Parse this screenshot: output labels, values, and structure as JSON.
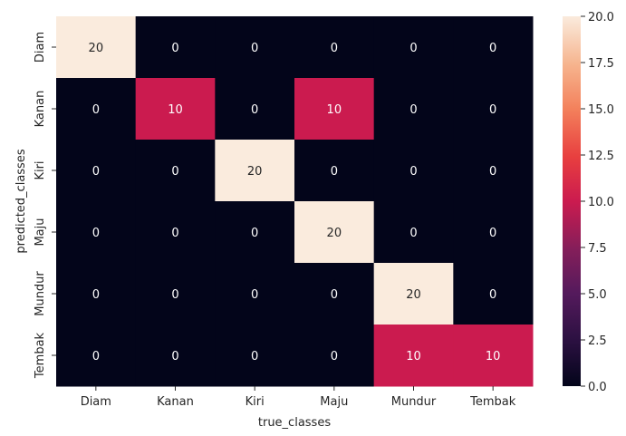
{
  "chart_data": {
    "type": "heatmap",
    "x_categories": [
      "Diam",
      "Kanan",
      "Kiri",
      "Maju",
      "Mundur",
      "Tembak"
    ],
    "y_categories": [
      "Diam",
      "Kanan",
      "Kiri",
      "Maju",
      "Mundur",
      "Tembak"
    ],
    "values": [
      [
        20,
        0,
        0,
        0,
        0,
        0
      ],
      [
        0,
        10,
        0,
        10,
        0,
        0
      ],
      [
        0,
        0,
        20,
        0,
        0,
        0
      ],
      [
        0,
        0,
        0,
        20,
        0,
        0
      ],
      [
        0,
        0,
        0,
        0,
        20,
        0
      ],
      [
        0,
        0,
        0,
        0,
        10,
        10
      ]
    ],
    "xlabel": "true_classes",
    "ylabel": "predicted_classes",
    "colorbar": {
      "range": [
        0,
        20
      ],
      "ticks": [
        "0.0",
        "2.5",
        "5.0",
        "7.5",
        "10.0",
        "12.5",
        "15.0",
        "17.5",
        "20.0"
      ],
      "colors": {
        "low": "#03051a",
        "mid": "#cb1b4f",
        "high": "#faebdd"
      }
    },
    "annotations": true,
    "grid": false
  }
}
